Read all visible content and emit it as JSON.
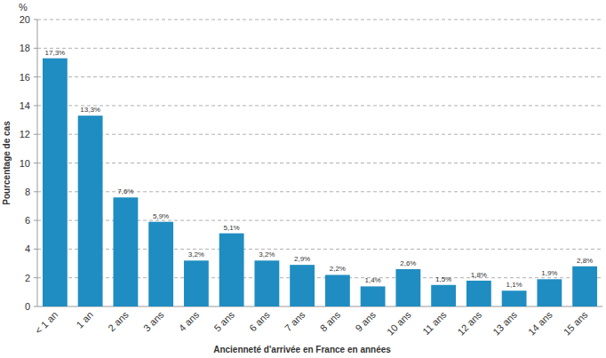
{
  "chart_data": {
    "type": "bar",
    "annotation": "%",
    "y_label": "Pourcentage de cas",
    "x_label": "Ancienneté d'arrivée en France en années",
    "categories": [
      "< 1 an",
      "1 an",
      "2 ans",
      "3 ans",
      "4 ans",
      "5 ans",
      "6 ans",
      "7 ans",
      "8 ans",
      "9 ans",
      "10 ans",
      "11 ans",
      "12 ans",
      "13 ans",
      "14 ans",
      "15 ans"
    ],
    "values": [
      17.3,
      13.3,
      7.6,
      5.9,
      3.2,
      5.1,
      3.2,
      2.9,
      2.2,
      1.4,
      2.6,
      1.5,
      1.8,
      1.1,
      1.9,
      2.8
    ],
    "value_labels": [
      "17,3%",
      "13,3%",
      "7,6%",
      "5,9%",
      "3,2%",
      "5,1%",
      "3,2%",
      "2,9%",
      "2,2%",
      "1,4%",
      "2,6%",
      "1,5%",
      "1,8%",
      "1,1%",
      "1,9%",
      "2,8%"
    ],
    "color": "#1f8dc1",
    "ylim": [
      0,
      20
    ],
    "yticks": [
      0,
      2,
      4,
      6,
      8,
      10,
      12,
      14,
      16,
      18,
      20
    ],
    "grid": true,
    "data_labels": true
  }
}
